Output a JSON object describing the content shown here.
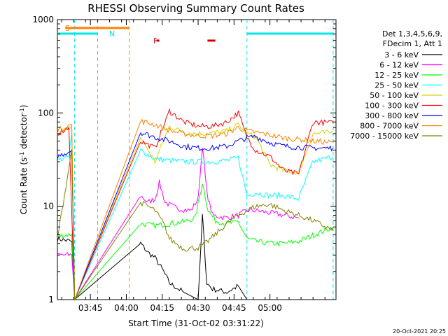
{
  "chart_data": {
    "type": "line",
    "title": "RHESSI Observing Summary Count Rates",
    "xlabel": "Start Time (31-Oct-02 03:31:22)",
    "ylabel_main": "Count Rate (s",
    "ylabel_sup1": "-1",
    "ylabel_mid": " detector",
    "ylabel_sup2": "-1",
    "ylabel_end": ")",
    "y_scale": "log",
    "ylim": [
      1,
      1000
    ],
    "xlim_minutes": [
      3.52,
      5.46
    ],
    "x_ticks": [
      {
        "label": "03:45",
        "t": 3.75
      },
      {
        "label": "04:00",
        "t": 4.0
      },
      {
        "label": "04:15",
        "t": 4.25
      },
      {
        "label": "04:30",
        "t": 4.5
      },
      {
        "label": "04:45",
        "t": 4.75
      },
      {
        "label": "05:00",
        "t": 5.0
      }
    ],
    "y_ticks": [
      {
        "label": "1",
        "v": 1
      },
      {
        "label": "10",
        "v": 10
      },
      {
        "label": "100",
        "v": 100
      },
      {
        "label": "1000",
        "v": 1000
      }
    ],
    "legend_header": [
      "Det 1,3,4,5,6,9,",
      "FDecim 1, Att 1"
    ],
    "timestamp": "20-Oct-2021 20:25",
    "flags": {
      "S": {
        "label": "S",
        "color": "#ff8000",
        "start": 3.52,
        "end": 4.02,
        "y": 760
      },
      "N": {
        "label": "N",
        "color": "#00e5e5",
        "segments": [
          [
            3.52,
            3.8
          ],
          [
            4.84,
            5.44
          ]
        ],
        "y": 660
      },
      "F": {
        "label": "F",
        "color": "#d00000",
        "segments": [
          [
            4.21,
            4.23
          ],
          [
            4.565,
            4.62
          ]
        ],
        "y": 575
      }
    },
    "vlines": [
      {
        "t": 3.64,
        "color": "#00e5e5"
      },
      {
        "t": 3.8,
        "color": "#00e5e5"
      },
      {
        "t": 4.02,
        "color": "#ff8000"
      },
      {
        "t": 4.84,
        "color": "#00e5e5"
      },
      {
        "t": 5.44,
        "color": "#00e5e5"
      }
    ],
    "segments_time": [
      [
        3.52,
        3.64
      ],
      [
        4.1,
        4.84
      ],
      [
        4.84,
        5.44
      ]
    ],
    "series": [
      {
        "name": "3 - 6 keV",
        "color": "#000000",
        "points": [
          [
            3.52,
            4.5
          ],
          [
            3.62,
            4.2
          ],
          [
            3.64,
            1
          ],
          [
            4.1,
            4.0
          ],
          [
            4.15,
            3.2
          ],
          [
            4.2,
            2.8
          ],
          [
            4.26,
            2.0
          ],
          [
            4.3,
            1.5
          ],
          [
            4.4,
            1.2
          ],
          [
            4.5,
            1.0
          ],
          [
            4.53,
            8.0
          ],
          [
            4.56,
            1.5
          ],
          [
            4.6,
            1.3
          ],
          [
            4.7,
            1.2
          ],
          [
            4.78,
            1.4
          ],
          [
            4.84,
            1.0
          ],
          [
            5.0,
            1.0
          ],
          [
            5.44,
            1.0
          ]
        ]
      },
      {
        "name": "6 - 12 keV",
        "color": "#ff00ff",
        "points": [
          [
            3.52,
            3.0
          ],
          [
            3.62,
            3.0
          ],
          [
            3.64,
            1
          ],
          [
            4.1,
            13
          ],
          [
            4.15,
            11
          ],
          [
            4.2,
            12
          ],
          [
            4.23,
            18
          ],
          [
            4.27,
            11
          ],
          [
            4.35,
            9.5
          ],
          [
            4.45,
            9
          ],
          [
            4.5,
            12
          ],
          [
            4.53,
            45
          ],
          [
            4.56,
            14
          ],
          [
            4.6,
            8
          ],
          [
            4.7,
            7.5
          ],
          [
            4.78,
            8
          ],
          [
            4.84,
            9.0
          ],
          [
            4.9,
            9.0
          ],
          [
            5.0,
            8.5
          ],
          [
            5.1,
            8.0
          ],
          [
            5.2,
            7.5
          ]
        ]
      },
      {
        "name": "12 - 25 keV",
        "color": "#00ff00",
        "points": [
          [
            3.52,
            4.8
          ],
          [
            3.62,
            5.0
          ],
          [
            3.64,
            1
          ],
          [
            4.1,
            6.5
          ],
          [
            4.2,
            6.2
          ],
          [
            4.3,
            6.5
          ],
          [
            4.4,
            6.8
          ],
          [
            4.48,
            7.5
          ],
          [
            4.53,
            18
          ],
          [
            4.57,
            9
          ],
          [
            4.62,
            7
          ],
          [
            4.7,
            6.5
          ],
          [
            4.78,
            6.8
          ],
          [
            4.84,
            4.5
          ],
          [
            4.9,
            4.2
          ],
          [
            5.0,
            4.0
          ],
          [
            5.1,
            4.0
          ],
          [
            5.2,
            4.2
          ],
          [
            5.44,
            6.0
          ]
        ]
      },
      {
        "name": "25 - 50 keV",
        "color": "#00ffff",
        "points": [
          [
            3.52,
            31
          ],
          [
            3.6,
            34
          ],
          [
            3.62,
            60
          ],
          [
            3.64,
            1
          ],
          [
            4.1,
            40
          ],
          [
            4.2,
            32
          ],
          [
            4.3,
            31
          ],
          [
            4.4,
            30
          ],
          [
            4.5,
            30
          ],
          [
            4.6,
            30
          ],
          [
            4.7,
            31
          ],
          [
            4.78,
            33
          ],
          [
            4.84,
            13
          ],
          [
            4.9,
            14
          ],
          [
            5.0,
            13
          ],
          [
            5.1,
            13
          ],
          [
            5.2,
            12
          ],
          [
            5.3,
            30
          ],
          [
            5.44,
            34
          ]
        ]
      },
      {
        "name": "50 - 100 keV",
        "color": "#d4d400",
        "points": [
          [
            3.52,
            60
          ],
          [
            3.62,
            70
          ],
          [
            3.64,
            1
          ],
          [
            4.1,
            55
          ],
          [
            4.2,
            30
          ],
          [
            4.3,
            72
          ],
          [
            4.4,
            62
          ],
          [
            4.5,
            60
          ],
          [
            4.6,
            61
          ],
          [
            4.7,
            64
          ],
          [
            4.78,
            75
          ],
          [
            4.84,
            60
          ],
          [
            4.9,
            56
          ],
          [
            5.0,
            28
          ],
          [
            5.1,
            24
          ],
          [
            5.2,
            23
          ],
          [
            5.3,
            60
          ],
          [
            5.44,
            62
          ]
        ]
      },
      {
        "name": "100 - 300 keV",
        "color": "#ff0000",
        "points": [
          [
            3.52,
            60
          ],
          [
            3.6,
            70
          ],
          [
            3.64,
            1
          ],
          [
            4.1,
            50
          ],
          [
            4.2,
            42
          ],
          [
            4.3,
            105
          ],
          [
            4.4,
            80
          ],
          [
            4.5,
            72
          ],
          [
            4.6,
            72
          ],
          [
            4.7,
            80
          ],
          [
            4.78,
            100
          ],
          [
            4.84,
            55
          ],
          [
            4.9,
            40
          ],
          [
            5.0,
            34
          ],
          [
            5.1,
            24
          ],
          [
            5.2,
            22
          ],
          [
            5.3,
            80
          ],
          [
            5.44,
            78
          ]
        ]
      },
      {
        "name": "300 - 800 keV",
        "color": "#0000ff",
        "points": [
          [
            3.52,
            34
          ],
          [
            3.62,
            40
          ],
          [
            3.64,
            1
          ],
          [
            4.1,
            62
          ],
          [
            4.2,
            55
          ],
          [
            4.3,
            50
          ],
          [
            4.4,
            44
          ],
          [
            4.5,
            42
          ],
          [
            4.6,
            42
          ],
          [
            4.7,
            44
          ],
          [
            4.78,
            50
          ],
          [
            4.84,
            54
          ],
          [
            4.9,
            56
          ],
          [
            5.0,
            48
          ],
          [
            5.1,
            44
          ],
          [
            5.2,
            43
          ],
          [
            5.3,
            42
          ],
          [
            5.44,
            42
          ]
        ]
      },
      {
        "name": "800 - 7000 keV",
        "color": "#ff8000",
        "points": [
          [
            3.52,
            65
          ],
          [
            3.62,
            75
          ],
          [
            3.64,
            1
          ],
          [
            4.1,
            82
          ],
          [
            4.2,
            75
          ],
          [
            4.3,
            65
          ],
          [
            4.4,
            60
          ],
          [
            4.5,
            57
          ],
          [
            4.6,
            57
          ],
          [
            4.7,
            60
          ],
          [
            4.78,
            70
          ],
          [
            4.84,
            64
          ],
          [
            4.9,
            62
          ],
          [
            5.0,
            58
          ],
          [
            5.1,
            54
          ],
          [
            5.2,
            52
          ],
          [
            5.3,
            50
          ],
          [
            5.44,
            48
          ]
        ]
      },
      {
        "name": "7000 - 15000 keV",
        "color": "#808000",
        "points": [
          [
            3.52,
            4.5
          ],
          [
            3.62,
            40
          ],
          [
            3.64,
            1
          ],
          [
            4.1,
            11
          ],
          [
            4.15,
            10
          ],
          [
            4.2,
            9
          ],
          [
            4.26,
            6.5
          ],
          [
            4.3,
            4.5
          ],
          [
            4.4,
            3.5
          ],
          [
            4.5,
            3.6
          ],
          [
            4.55,
            4
          ],
          [
            4.62,
            5
          ],
          [
            4.7,
            6.5
          ],
          [
            4.78,
            8
          ],
          [
            4.84,
            9
          ],
          [
            4.9,
            10
          ],
          [
            5.0,
            10.5
          ],
          [
            5.1,
            9
          ],
          [
            5.2,
            8
          ],
          [
            5.3,
            7
          ],
          [
            5.44,
            5.5
          ]
        ]
      }
    ]
  }
}
